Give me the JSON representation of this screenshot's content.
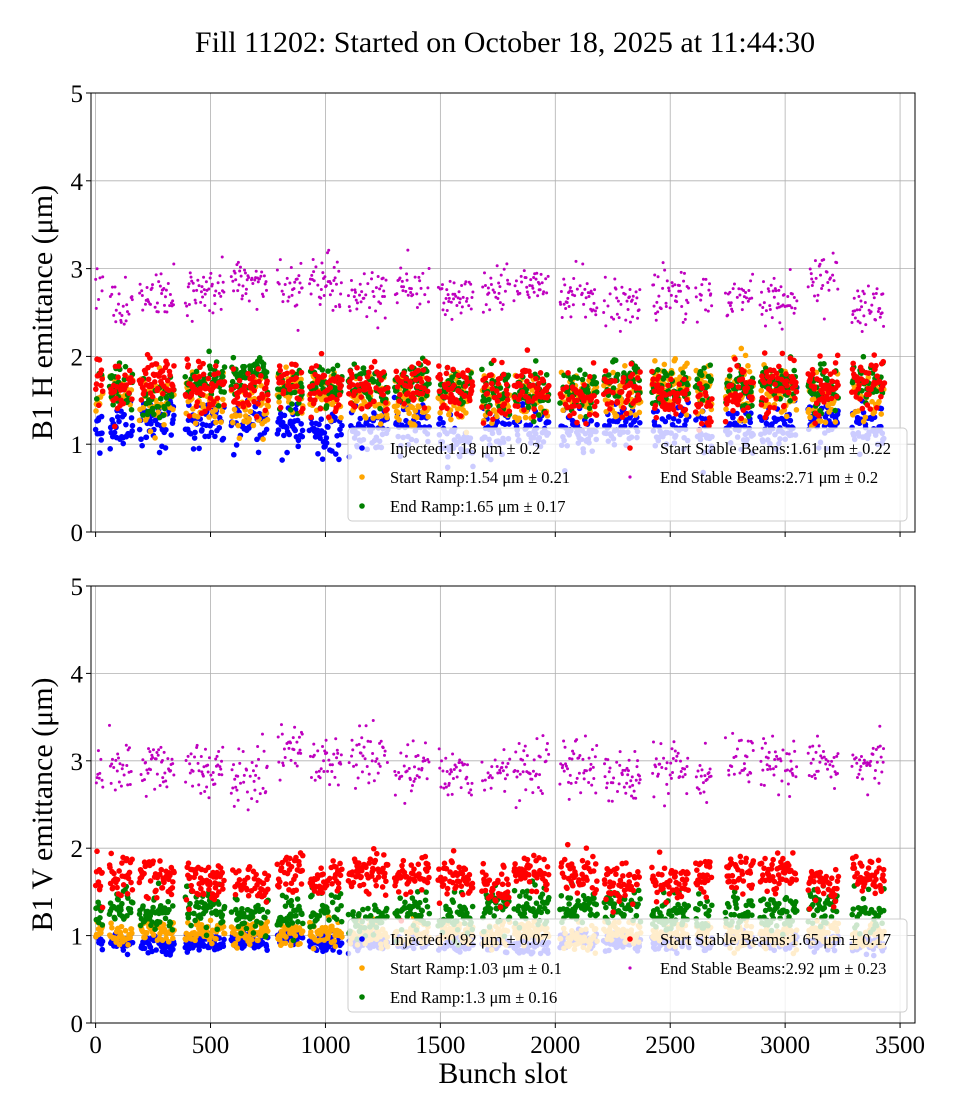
{
  "title": "Fill 11202: Started on October 18, 2025 at 11:44:30",
  "xlabel": "Bunch slot",
  "chart_data": [
    {
      "type": "scatter",
      "ylabel": "B1 H emittance (μm)",
      "xlim": [
        -20,
        3565
      ],
      "ylim": [
        0,
        5
      ],
      "xticks": [
        "0",
        "500",
        "1000",
        "1500",
        "2000",
        "2500",
        "3000",
        "3500"
      ],
      "xtick_values": [
        0,
        500,
        1000,
        1500,
        2000,
        2500,
        3000,
        3500
      ],
      "yticks": [
        "0",
        "1",
        "2",
        "3",
        "4",
        "5"
      ],
      "grid": true,
      "legend_position": "lower-right",
      "series": [
        {
          "name": "Injected",
          "mean": 1.18,
          "std": 0.2,
          "color": "#0000ff",
          "legend": "Injected:1.18 μm ± 0.2"
        },
        {
          "name": "Start Ramp",
          "mean": 1.54,
          "std": 0.21,
          "color": "#ffa500",
          "legend": "Start Ramp:1.54 μm ± 0.21"
        },
        {
          "name": "End Ramp",
          "mean": 1.65,
          "std": 0.17,
          "color": "#008000",
          "legend": "End Ramp:1.65 μm ± 0.17"
        },
        {
          "name": "Start Stable Beams",
          "mean": 1.61,
          "std": 0.22,
          "color": "#ff0000",
          "legend": "Start Stable Beams:1.61 μm ± 0.22"
        },
        {
          "name": "End Stable Beams",
          "mean": 2.71,
          "std": 0.2,
          "color": "#bf00bf",
          "legend": "End Stable Beams:2.71 μm ± 0.2"
        }
      ]
    },
    {
      "type": "scatter",
      "ylabel": "B1 V emittance (μm)",
      "xlim": [
        -20,
        3565
      ],
      "ylim": [
        0,
        5
      ],
      "xticks": [
        "0",
        "500",
        "1000",
        "1500",
        "2000",
        "2500",
        "3000",
        "3500"
      ],
      "xtick_values": [
        0,
        500,
        1000,
        1500,
        2000,
        2500,
        3000,
        3500
      ],
      "yticks": [
        "0",
        "1",
        "2",
        "3",
        "4",
        "5"
      ],
      "grid": true,
      "legend_position": "lower-right",
      "series": [
        {
          "name": "Injected",
          "mean": 0.92,
          "std": 0.07,
          "color": "#0000ff",
          "legend": "Injected:0.92 μm ± 0.07"
        },
        {
          "name": "Start Ramp",
          "mean": 1.03,
          "std": 0.1,
          "color": "#ffa500",
          "legend": "Start Ramp:1.03 μm ± 0.1"
        },
        {
          "name": "End Ramp",
          "mean": 1.3,
          "std": 0.16,
          "color": "#008000",
          "legend": "End Ramp:1.3 μm ± 0.16"
        },
        {
          "name": "Start Stable Beams",
          "mean": 1.65,
          "std": 0.17,
          "color": "#ff0000",
          "legend": "Start Stable Beams:1.65 μm ± 0.17"
        },
        {
          "name": "End Stable Beams",
          "mean": 2.92,
          "std": 0.23,
          "color": "#bf00bf",
          "legend": "End Stable Beams:2.92 μm ± 0.23"
        }
      ]
    }
  ],
  "bunch_trains": [
    [
      0,
      30
    ],
    [
      60,
      160
    ],
    [
      190,
      340
    ],
    [
      390,
      560
    ],
    [
      590,
      750
    ],
    [
      790,
      900
    ],
    [
      930,
      1070
    ],
    [
      1100,
      1270
    ],
    [
      1300,
      1450
    ],
    [
      1490,
      1640
    ],
    [
      1680,
      1800
    ],
    [
      1820,
      1970
    ],
    [
      2020,
      2180
    ],
    [
      2210,
      2370
    ],
    [
      2420,
      2580
    ],
    [
      2610,
      2680
    ],
    [
      2740,
      2860
    ],
    [
      2890,
      3050
    ],
    [
      3100,
      3230
    ],
    [
      3290,
      3430
    ]
  ]
}
